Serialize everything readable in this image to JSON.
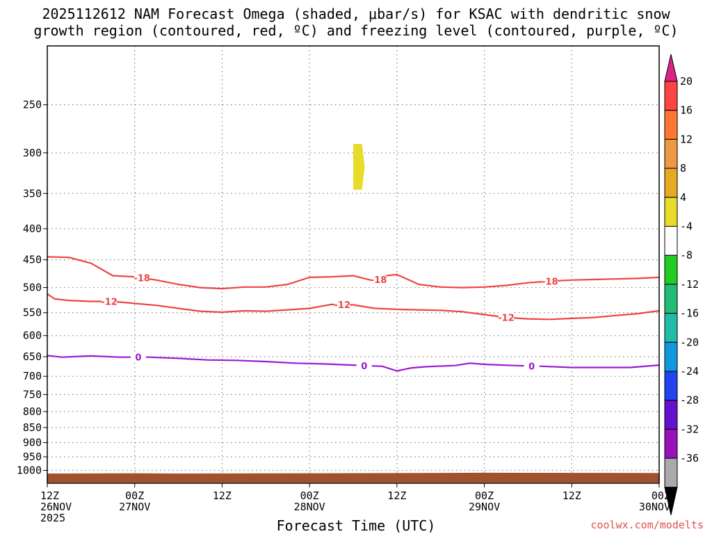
{
  "title": {
    "line1": "2025112612 NAM Forecast Omega (shaded, μbar/s) for KSAC with dendritic snow",
    "line2": "growth region (contoured, red, ºC) and freezing level (contoured, purple, ºC)"
  },
  "x_axis_label": "Forecast Time (UTC)",
  "credit": "coolwx.com/modelts",
  "colors": {
    "dgz": "#ee4444",
    "freezing": "#9a1ad0",
    "ground": "#a0522d",
    "omega_positive": "#e8dc2a",
    "grid": "#808080"
  },
  "chart_data": {
    "type": "contour",
    "y_axis": {
      "unit": "hPa",
      "range": [
        200,
        1050
      ],
      "ticks": [
        250,
        300,
        350,
        400,
        450,
        500,
        550,
        600,
        650,
        700,
        750,
        800,
        850,
        900,
        950,
        1000
      ],
      "tick_labels": [
        "250",
        "300",
        "350",
        "400",
        "450",
        "500",
        "550",
        "600",
        "650",
        "700",
        "750",
        "800",
        "850",
        "900",
        "950",
        "1000"
      ]
    },
    "x_axis": {
      "unit": "forecast hour",
      "range": [
        0,
        84
      ],
      "tick_hours": [
        0,
        12,
        24,
        36,
        48,
        60,
        72,
        84
      ],
      "tick_labels": [
        {
          "l1": "12Z",
          "l2": "26NOV",
          "l3": "2025"
        },
        {
          "l1": "00Z",
          "l2": "27NOV",
          "l3": ""
        },
        {
          "l1": "12Z",
          "l2": "",
          "l3": ""
        },
        {
          "l1": "00Z",
          "l2": "28NOV",
          "l3": ""
        },
        {
          "l1": "12Z",
          "l2": "",
          "l3": ""
        },
        {
          "l1": "00Z",
          "l2": "29NOV",
          "l3": ""
        },
        {
          "l1": "12Z",
          "l2": "",
          "l3": ""
        },
        {
          "l1": "00Z",
          "l2": "30NOV",
          "l3": ""
        }
      ]
    },
    "contours": [
      {
        "name": "minus-18",
        "label": "-18",
        "color": "#ee4444",
        "label_hours": [
          13,
          45.5,
          69
        ],
        "points": [
          [
            0,
            445
          ],
          [
            3,
            446
          ],
          [
            6,
            456
          ],
          [
            9,
            478
          ],
          [
            12,
            480
          ],
          [
            15,
            486
          ],
          [
            18,
            494
          ],
          [
            21,
            500
          ],
          [
            24,
            502
          ],
          [
            27,
            499
          ],
          [
            30,
            499
          ],
          [
            33,
            494
          ],
          [
            36,
            481
          ],
          [
            39,
            480
          ],
          [
            42,
            478
          ],
          [
            45,
            488
          ],
          [
            46.5,
            478
          ],
          [
            48,
            476
          ],
          [
            51,
            494
          ],
          [
            54,
            499
          ],
          [
            57,
            500
          ],
          [
            60,
            499
          ],
          [
            63,
            496
          ],
          [
            66,
            491
          ],
          [
            69,
            488
          ],
          [
            72,
            486
          ],
          [
            75,
            485
          ],
          [
            78,
            484
          ],
          [
            81,
            483
          ],
          [
            84,
            481
          ]
        ]
      },
      {
        "name": "minus-12",
        "label": "-12",
        "color": "#ee4444",
        "label_hours": [
          8.5,
          40.5,
          63
        ],
        "points": [
          [
            0,
            512
          ],
          [
            1,
            522
          ],
          [
            3,
            525
          ],
          [
            6,
            527
          ],
          [
            9,
            527
          ],
          [
            12,
            531
          ],
          [
            15,
            535
          ],
          [
            18,
            541
          ],
          [
            21,
            547
          ],
          [
            24,
            549
          ],
          [
            27,
            546
          ],
          [
            30,
            547
          ],
          [
            33,
            544
          ],
          [
            36,
            541
          ],
          [
            39,
            533
          ],
          [
            42,
            534
          ],
          [
            45,
            541
          ],
          [
            48,
            543
          ],
          [
            51,
            544
          ],
          [
            54,
            545
          ],
          [
            57,
            548
          ],
          [
            60,
            554
          ],
          [
            63,
            560
          ],
          [
            66,
            563
          ],
          [
            69,
            564
          ],
          [
            72,
            562
          ],
          [
            75,
            560
          ],
          [
            78,
            556
          ],
          [
            81,
            552
          ],
          [
            84,
            546
          ]
        ]
      },
      {
        "name": "zero-freezing",
        "label": "0",
        "color": "#9a1ad0",
        "label_hours": [
          12.5,
          43.5,
          66.5
        ],
        "points": [
          [
            0,
            647
          ],
          [
            2,
            651
          ],
          [
            6,
            648
          ],
          [
            10,
            651
          ],
          [
            14,
            651
          ],
          [
            18,
            654
          ],
          [
            22,
            658
          ],
          [
            26,
            659
          ],
          [
            30,
            662
          ],
          [
            34,
            666
          ],
          [
            38,
            668
          ],
          [
            42,
            671
          ],
          [
            46,
            674
          ],
          [
            48,
            686
          ],
          [
            50,
            678
          ],
          [
            52,
            675
          ],
          [
            56,
            672
          ],
          [
            58,
            666
          ],
          [
            60,
            669
          ],
          [
            64,
            672
          ],
          [
            68,
            674
          ],
          [
            72,
            677
          ],
          [
            76,
            677
          ],
          [
            80,
            677
          ],
          [
            84,
            671
          ]
        ]
      }
    ],
    "omega_shading": {
      "value_range": [
        4,
        8
      ],
      "hours": [
        42,
        43.2
      ],
      "pressure": [
        290,
        345
      ]
    },
    "colorbar": {
      "tick_labels": [
        "20",
        "16",
        "12",
        "8",
        "4",
        "-4",
        "-8",
        "-12",
        "-16",
        "-20",
        "-24",
        "-28",
        "-32",
        "-36"
      ],
      "colors": [
        "#dd2288",
        "#ff4444",
        "#ff7733",
        "#ee9944",
        "#e8aa22",
        "#e8dc2a",
        "#ffffff",
        "#22cc22",
        "#22bb77",
        "#22bbaa",
        "#1199dd",
        "#2244ee",
        "#6611cc",
        "#9911bb",
        "#aaaaaa",
        "#000000"
      ]
    }
  }
}
